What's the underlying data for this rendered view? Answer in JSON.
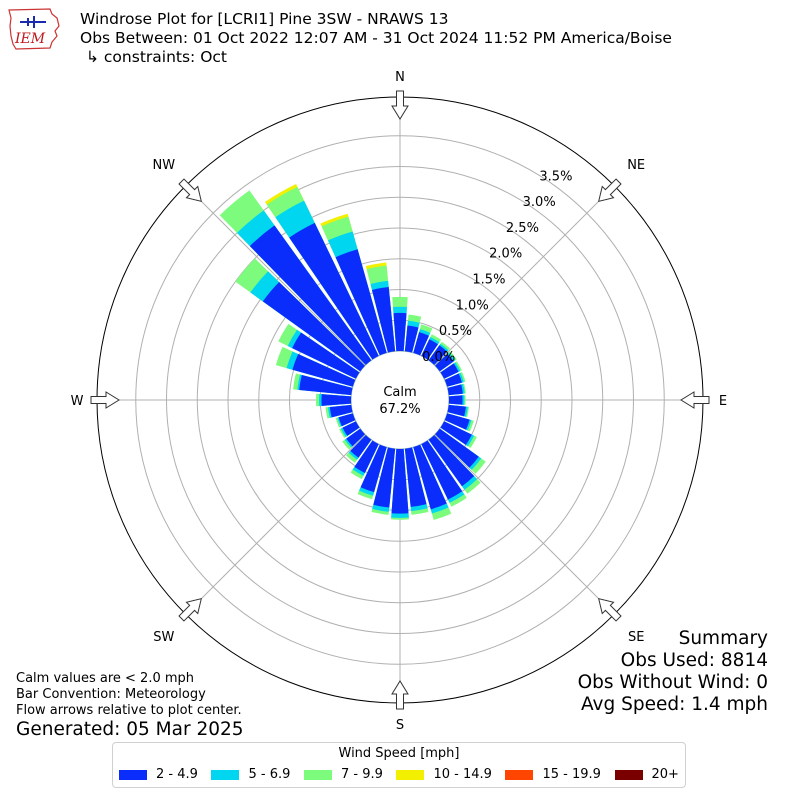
{
  "header": {
    "title": "Windrose Plot for [LCRI1] Pine 3SW - NRAWS 13",
    "obs_range": "Obs Between: 01 Oct 2022 12:07 AM - 31 Oct 2024 11:52 PM America/Boise",
    "constraints": "↳ constraints: Oct",
    "logo_text": "IEM"
  },
  "calm": {
    "label": "Calm",
    "value": "67.2%"
  },
  "summary": {
    "heading": "Summary",
    "obs_used": "Obs Used: 8814",
    "obs_without_wind": "Obs Without Wind: 0",
    "avg_speed": "Avg Speed: 1.4 mph"
  },
  "notes": {
    "calm_def": "Calm values are < 2.0 mph",
    "bar_convention": "Bar Convention: Meteorology",
    "flow_arrows": "Flow arrows relative to plot center."
  },
  "generated": "Generated: 05 Mar 2025",
  "legend": {
    "title": "Wind Speed [mph]",
    "items": [
      {
        "label": "2 - 4.9",
        "color": "#0a2dfc"
      },
      {
        "label": "5 - 6.9",
        "color": "#00d6f0"
      },
      {
        "label": "7 - 9.9",
        "color": "#7dfb7d"
      },
      {
        "label": "10 - 14.9",
        "color": "#f2f000"
      },
      {
        "label": "15 - 19.9",
        "color": "#ff4500"
      },
      {
        "label": "20+",
        "color": "#7a0000"
      }
    ]
  },
  "chart_data": {
    "type": "windrose",
    "unit": "%",
    "radial_ticks": [
      "0.0%",
      "0.5%",
      "1.0%",
      "1.5%",
      "2.0%",
      "2.5%",
      "3.0%",
      "3.5%"
    ],
    "radial_values": [
      0,
      0.5,
      1.0,
      1.5,
      2.0,
      2.5,
      3.0,
      3.5
    ],
    "cardinal_labels": [
      "N",
      "NE",
      "E",
      "SE",
      "S",
      "SW",
      "W",
      "NW"
    ],
    "speed_bins": [
      "2 - 4.9",
      "5 - 6.9",
      "7 - 9.9",
      "10 - 14.9",
      "15 - 19.9",
      "20+"
    ],
    "directions_deg": [
      0,
      10,
      20,
      30,
      40,
      50,
      60,
      70,
      80,
      90,
      100,
      110,
      120,
      130,
      140,
      150,
      160,
      170,
      180,
      190,
      200,
      210,
      220,
      230,
      240,
      250,
      260,
      270,
      280,
      290,
      300,
      310,
      320,
      330,
      340,
      350
    ],
    "cumulative_percent": [
      [
        0.62,
        0.72,
        0.88,
        0,
        0,
        0
      ],
      [
        0.42,
        0.5,
        0.6,
        0,
        0,
        0
      ],
      [
        0.35,
        0.4,
        0.48,
        0,
        0,
        0
      ],
      [
        0.3,
        0.34,
        0.39,
        0,
        0,
        0
      ],
      [
        0.3,
        0.33,
        0.37,
        0,
        0,
        0
      ],
      [
        0.28,
        0.31,
        0.34,
        0,
        0,
        0
      ],
      [
        0.26,
        0.29,
        0.32,
        0,
        0,
        0
      ],
      [
        0.25,
        0.28,
        0.31,
        0,
        0,
        0
      ],
      [
        0.23,
        0.26,
        0.28,
        0,
        0,
        0
      ],
      [
        0.22,
        0.25,
        0.27,
        0,
        0,
        0
      ],
      [
        0.28,
        0.31,
        0.33,
        0,
        0,
        0
      ],
      [
        0.38,
        0.41,
        0.45,
        0,
        0,
        0
      ],
      [
        0.5,
        0.54,
        0.59,
        0,
        0,
        0
      ],
      [
        0.78,
        0.83,
        0.92,
        0,
        0,
        0
      ],
      [
        0.93,
        1.0,
        1.08,
        0,
        0,
        0
      ],
      [
        1.0,
        1.06,
        1.13,
        0,
        0,
        0
      ],
      [
        1.05,
        1.12,
        1.23,
        0,
        0,
        0
      ],
      [
        0.95,
        1.02,
        1.08,
        0,
        0,
        0
      ],
      [
        1.05,
        1.12,
        1.15,
        0,
        0,
        0
      ],
      [
        0.96,
        1.03,
        1.08,
        0,
        0,
        0
      ],
      [
        0.76,
        0.82,
        0.88,
        0,
        0,
        0
      ],
      [
        0.52,
        0.57,
        0.63,
        0,
        0,
        0
      ],
      [
        0.36,
        0.4,
        0.46,
        0,
        0,
        0
      ],
      [
        0.28,
        0.31,
        0.36,
        0,
        0,
        0
      ],
      [
        0.24,
        0.27,
        0.3,
        0,
        0,
        0
      ],
      [
        0.24,
        0.26,
        0.29,
        0,
        0,
        0
      ],
      [
        0.35,
        0.38,
        0.42,
        0,
        0,
        0
      ],
      [
        0.48,
        0.52,
        0.57,
        0,
        0,
        0
      ],
      [
        0.85,
        0.88,
        0.95,
        0,
        0,
        0
      ],
      [
        1.02,
        1.12,
        1.3,
        0,
        0,
        0
      ],
      [
        1.15,
        1.23,
        1.4,
        0,
        0,
        0
      ],
      [
        1.95,
        2.2,
        2.5,
        0,
        0,
        0
      ],
      [
        2.7,
        3.0,
        3.4,
        0,
        0,
        0
      ],
      [
        2.4,
        2.8,
        3.05,
        3.1,
        0,
        0
      ],
      [
        1.75,
        2.05,
        2.3,
        2.35,
        0,
        0
      ],
      [
        1.05,
        1.15,
        1.4,
        1.45,
        0,
        0
      ]
    ]
  }
}
